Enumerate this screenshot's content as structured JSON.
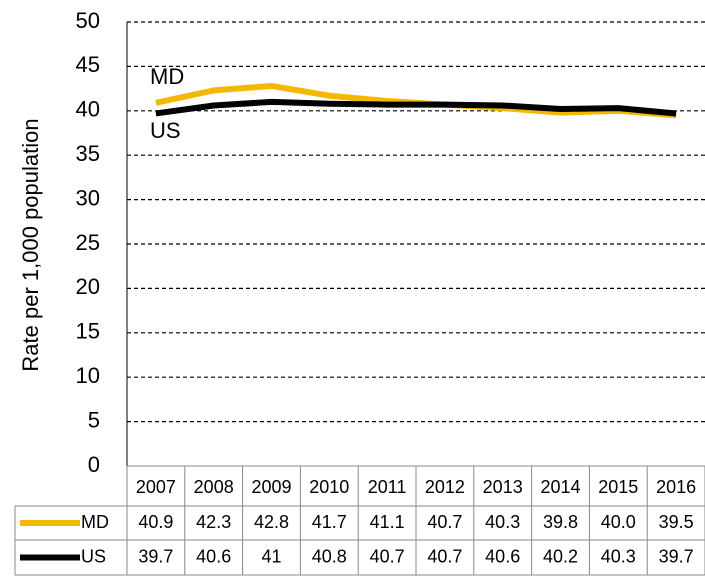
{
  "chart_data": {
    "type": "line",
    "y_label": "Rate per 1,000 population",
    "categories": [
      "2007",
      "2008",
      "2009",
      "2010",
      "2011",
      "2012",
      "2013",
      "2014",
      "2015",
      "2016"
    ],
    "series": [
      {
        "name": "MD",
        "color": "#f5b800",
        "values": [
          40.9,
          42.3,
          42.8,
          41.7,
          41.1,
          40.7,
          40.3,
          39.8,
          40.0,
          39.5
        ],
        "value_labels": [
          "40.9",
          "42.3",
          "42.8",
          "41.7",
          "41.1",
          "40.7",
          "40.3",
          "39.8",
          "40.0",
          "39.5"
        ]
      },
      {
        "name": "US",
        "color": "#000000",
        "values": [
          39.7,
          40.6,
          41,
          40.8,
          40.7,
          40.7,
          40.6,
          40.2,
          40.3,
          39.7
        ]
      }
    ],
    "ylim": [
      0,
      50
    ],
    "yticks": [
      0,
      5,
      10,
      15,
      20,
      25,
      30,
      35,
      40,
      45,
      50
    ],
    "grid": true
  }
}
